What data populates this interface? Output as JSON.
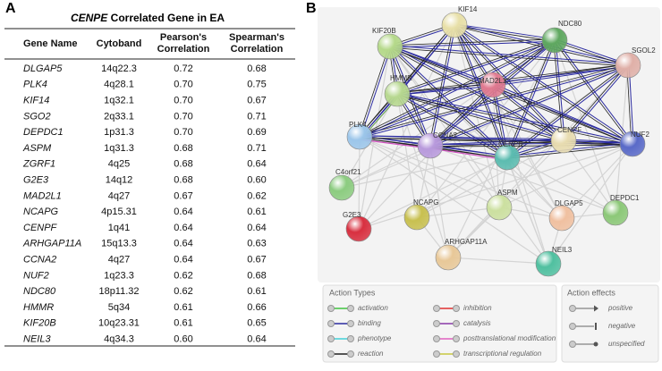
{
  "panel_a": {
    "label": "A"
  },
  "panel_b": {
    "label": "B"
  },
  "table": {
    "title_gene": "CENPE",
    "title_rest": "Correlated Gene in EA",
    "headers": [
      [
        "Gene Name"
      ],
      [
        "Cytoband"
      ],
      [
        "Pearson's",
        "Correlation"
      ],
      [
        "Spearman's",
        "Correlation"
      ]
    ],
    "rows": [
      [
        "DLGAP5",
        "14q22.3",
        "0.72",
        "0.68"
      ],
      [
        "PLK4",
        "4q28.1",
        "0.70",
        "0.75"
      ],
      [
        "KIF14",
        "1q32.1",
        "0.70",
        "0.67"
      ],
      [
        "SGO2",
        "2q33.1",
        "0.70",
        "0.71"
      ],
      [
        "DEPDC1",
        "1p31.3",
        "0.70",
        "0.69"
      ],
      [
        "ASPM",
        "1q31.3",
        "0.68",
        "0.71"
      ],
      [
        "ZGRF1",
        "4q25",
        "0.68",
        "0.64"
      ],
      [
        "G2E3",
        "14q12",
        "0.68",
        "0.60"
      ],
      [
        "MAD2L1",
        "4q27",
        "0.67",
        "0.62"
      ],
      [
        "NCAPG",
        "4p15.31",
        "0.64",
        "0.61"
      ],
      [
        "CENPF",
        "1q41",
        "0.64",
        "0.64"
      ],
      [
        "ARHGAP11A",
        "15q13.3",
        "0.64",
        "0.63"
      ],
      [
        "CCNA2",
        "4q27",
        "0.64",
        "0.67"
      ],
      [
        "NUF2",
        "1q23.3",
        "0.62",
        "0.68"
      ],
      [
        "NDC80",
        "18p11.32",
        "0.62",
        "0.61"
      ],
      [
        "HMMR",
        "5q34",
        "0.61",
        "0.66"
      ],
      [
        "KIF20B",
        "10q23.31",
        "0.61",
        "0.65"
      ],
      [
        "NEIL3",
        "4q34.3",
        "0.60",
        "0.64"
      ]
    ]
  },
  "network": {
    "nodes": [
      {
        "label": "KIF14"
      },
      {
        "label": "NDC80"
      },
      {
        "label": "KIF20B"
      },
      {
        "label": "SGOL2"
      },
      {
        "label": "MAD2L1"
      },
      {
        "label": "HMMR"
      },
      {
        "label": "PLK4"
      },
      {
        "label": "CCNA2"
      },
      {
        "label": "CENPE"
      },
      {
        "label": "CENPF"
      },
      {
        "label": "NUF2"
      },
      {
        "label": "C4orf21"
      },
      {
        "label": "ASPM"
      },
      {
        "label": "NCAPG"
      },
      {
        "label": "DLGAP5"
      },
      {
        "label": "DEPDC1"
      },
      {
        "label": "G2E3"
      },
      {
        "label": "ARHGAP11A"
      },
      {
        "label": "NEIL3"
      }
    ],
    "legend_types": {
      "title": "Action Types",
      "items": [
        "activation",
        "inhibition",
        "binding",
        "catalysis",
        "phenotype",
        "posttranslational modification",
        "reaction",
        "transcriptional regulation"
      ]
    },
    "legend_effects": {
      "title": "Action effects",
      "items": [
        "positive",
        "negative",
        "unspecified"
      ]
    }
  }
}
